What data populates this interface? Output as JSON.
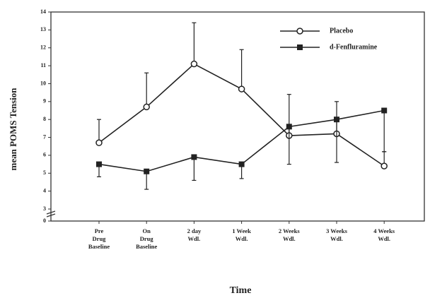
{
  "chart_data": {
    "type": "line",
    "x_label": "Time",
    "y_label": "mean POMS Tension",
    "categories": [
      [
        "Pre",
        "Drug",
        "Baseline"
      ],
      [
        "On",
        "Drug",
        "Baseline"
      ],
      [
        "2 day",
        "Wdl."
      ],
      [
        "1 Week",
        "Wdl."
      ],
      [
        "2 Weeks",
        "Wdl."
      ],
      [
        "3 Weeks",
        "Wdl."
      ],
      [
        "4 Weeks",
        "Wdl."
      ]
    ],
    "series": [
      {
        "name": "Placebo",
        "color": "#222",
        "marker": "open-circle",
        "error_direction": "up",
        "values": [
          6.7,
          8.7,
          11.1,
          9.7,
          7.1,
          7.2,
          5.4
        ],
        "errors": [
          1.3,
          1.9,
          2.3,
          2.2,
          2.3,
          1.8,
          0.8
        ]
      },
      {
        "name": "d-Fenfluramine",
        "color": "#222",
        "marker": "filled-square",
        "error_direction": "down",
        "values": [
          5.5,
          5.1,
          5.9,
          5.5,
          7.6,
          8.0,
          8.5
        ],
        "errors": [
          0.7,
          1.0,
          1.3,
          0.8,
          2.1,
          2.4,
          2.3
        ]
      }
    ],
    "ylim": [
      0,
      14
    ],
    "ybreak": [
      0,
      3
    ],
    "yticks": [
      0,
      3,
      4,
      5,
      6,
      7,
      8,
      9,
      10,
      11,
      12,
      13,
      14
    ],
    "legend": "upper right"
  }
}
